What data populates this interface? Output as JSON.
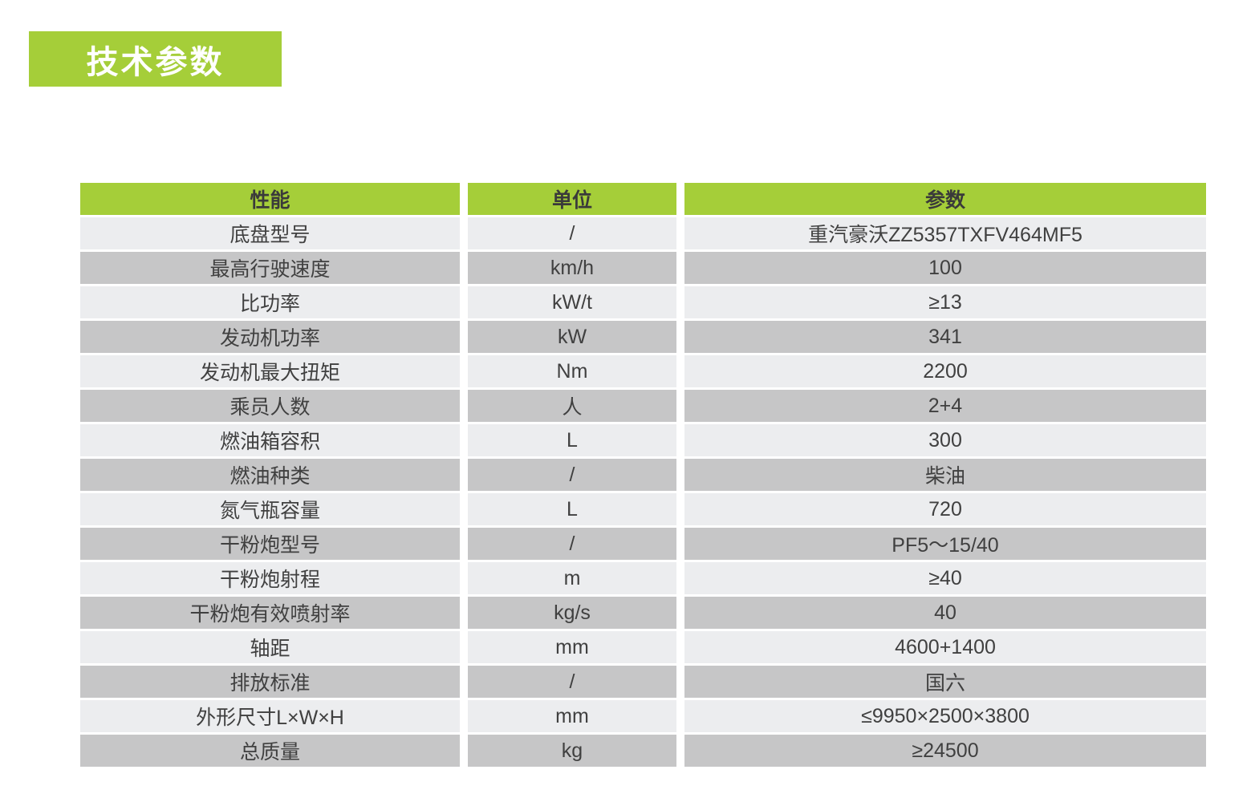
{
  "page": {
    "title": "技术参数"
  },
  "colors": {
    "accent_green": "#a5ce39",
    "row_light": "#ecedef",
    "row_dark": "#c6c6c7",
    "header_text": "#3a3a3a",
    "cell_text": "#404040",
    "title_text": "#ffffff"
  },
  "table": {
    "columns": [
      {
        "label": "性能"
      },
      {
        "label": "单位"
      },
      {
        "label": "参数"
      }
    ],
    "rows": [
      {
        "performance": "底盘型号",
        "unit": "/",
        "value": "重汽豪沃ZZ5357TXFV464MF5"
      },
      {
        "performance": "最高行驶速度",
        "unit": "km/h",
        "value": "100"
      },
      {
        "performance": "比功率",
        "unit": "kW/t",
        "value": "≥13"
      },
      {
        "performance": "发动机功率",
        "unit": "kW",
        "value": "341"
      },
      {
        "performance": "发动机最大扭矩",
        "unit": "Nm",
        "value": "2200"
      },
      {
        "performance": "乘员人数",
        "unit": "人",
        "value": "2+4"
      },
      {
        "performance": "燃油箱容积",
        "unit": "L",
        "value": "300"
      },
      {
        "performance": "燃油种类",
        "unit": "/",
        "value": "柴油"
      },
      {
        "performance": "氮气瓶容量",
        "unit": "L",
        "value": "720"
      },
      {
        "performance": "干粉炮型号",
        "unit": "/",
        "value": "PF5～15/40"
      },
      {
        "performance": "干粉炮射程",
        "unit": "m",
        "value": "≥40"
      },
      {
        "performance": "干粉炮有效喷射率",
        "unit": "kg/s",
        "value": "40"
      },
      {
        "performance": "轴距",
        "unit": "mm",
        "value": "4600+1400"
      },
      {
        "performance": "排放标准",
        "unit": "/",
        "value": "国六"
      },
      {
        "performance": "外形尺寸L×W×H",
        "unit": "mm",
        "value": "≤9950×2500×3800"
      },
      {
        "performance": "总质量",
        "unit": "kg",
        "value": "≥24500"
      }
    ]
  }
}
